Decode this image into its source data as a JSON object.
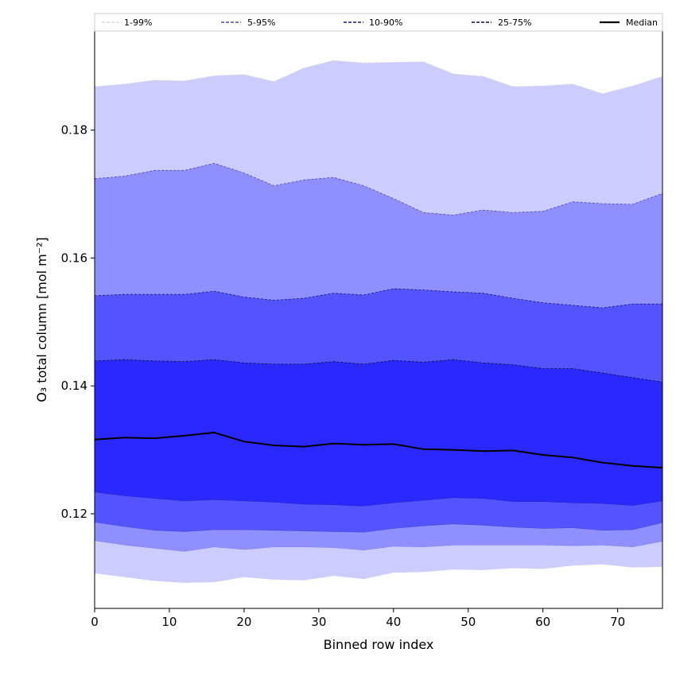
{
  "chart_data": {
    "type": "area",
    "xlabel": "Binned row index",
    "ylabel": "O₃ total column [mol m⁻²]",
    "xlim": [
      0,
      76
    ],
    "ylim": [
      0.1052,
      0.1955
    ],
    "x_ticks": [
      0,
      10,
      20,
      30,
      40,
      50,
      60,
      70
    ],
    "y_ticks": [
      0.12,
      0.14,
      0.16,
      0.18
    ],
    "x_tick_labels": [
      "0",
      "10",
      "20",
      "30",
      "40",
      "50",
      "60",
      "70"
    ],
    "y_tick_labels": [
      "0.12",
      "0.14",
      "0.16",
      "0.18"
    ],
    "grid": false,
    "legend_position": "top",
    "x": [
      0,
      4,
      8,
      12,
      16,
      20,
      24,
      28,
      32,
      36,
      40,
      44,
      48,
      52,
      56,
      60,
      64,
      68,
      72,
      76
    ],
    "series": [
      {
        "name": "1-99%",
        "kind": "band",
        "fill": "#ccccff",
        "line": "#d8d8d8",
        "lower": [
          0.1107,
          0.1101,
          0.1095,
          0.1092,
          0.1093,
          0.1101,
          0.1097,
          0.1096,
          0.1103,
          0.1098,
          0.1108,
          0.1109,
          0.1113,
          0.1112,
          0.1115,
          0.1114,
          0.1119,
          0.1121,
          0.1116,
          0.1117
        ],
        "upper": [
          0.1868,
          0.1872,
          0.1878,
          0.1877,
          0.1885,
          0.1887,
          0.1876,
          0.1897,
          0.1909,
          0.1905,
          0.1906,
          0.1907,
          0.1888,
          0.1884,
          0.1868,
          0.1869,
          0.1872,
          0.1857,
          0.1869,
          0.1884
        ]
      },
      {
        "name": "5-95%",
        "kind": "band",
        "fill": "#8f8fff",
        "line": "#4b4b9c",
        "lower": [
          0.1158,
          0.1151,
          0.1146,
          0.1141,
          0.1148,
          0.1144,
          0.1148,
          0.1148,
          0.1147,
          0.1143,
          0.1149,
          0.1148,
          0.1151,
          0.1151,
          0.1151,
          0.1151,
          0.115,
          0.1151,
          0.1148,
          0.1157
        ],
        "upper": [
          0.1724,
          0.1728,
          0.1737,
          0.1737,
          0.1748,
          0.1733,
          0.1713,
          0.1722,
          0.1726,
          0.1713,
          0.1693,
          0.1671,
          0.1667,
          0.1675,
          0.1671,
          0.1673,
          0.1688,
          0.1685,
          0.1684,
          0.1701
        ]
      },
      {
        "name": "10-90%",
        "kind": "band",
        "fill": "#5454ff",
        "line": "#1a1a6e",
        "lower": [
          0.1187,
          0.118,
          0.1174,
          0.1172,
          0.1175,
          0.1175,
          0.1174,
          0.1173,
          0.1172,
          0.1171,
          0.1177,
          0.1181,
          0.1184,
          0.1182,
          0.1179,
          0.1177,
          0.1178,
          0.1174,
          0.1175,
          0.1186
        ],
        "upper": [
          0.1541,
          0.1543,
          0.1543,
          0.1543,
          0.1548,
          0.1539,
          0.1534,
          0.1537,
          0.1545,
          0.1542,
          0.1552,
          0.155,
          0.1547,
          0.1545,
          0.1537,
          0.153,
          0.1526,
          0.1522,
          0.1528,
          0.1528
        ]
      },
      {
        "name": "25-75%",
        "kind": "band",
        "fill": "#2929ff",
        "line": "#0b0b4a",
        "lower": [
          0.1234,
          0.1228,
          0.1224,
          0.122,
          0.1222,
          0.122,
          0.1218,
          0.1215,
          0.1214,
          0.1212,
          0.1217,
          0.1221,
          0.1225,
          0.1224,
          0.1219,
          0.1219,
          0.1217,
          0.1216,
          0.1213,
          0.122
        ],
        "upper": [
          0.1439,
          0.1441,
          0.1439,
          0.1438,
          0.1441,
          0.1436,
          0.1434,
          0.1434,
          0.1438,
          0.1434,
          0.144,
          0.1437,
          0.1441,
          0.1436,
          0.1433,
          0.1427,
          0.1427,
          0.142,
          0.1413,
          0.1406
        ]
      },
      {
        "name": "Median",
        "kind": "line",
        "color": "#000000",
        "values": [
          0.1316,
          0.1319,
          0.1318,
          0.1322,
          0.1327,
          0.1313,
          0.1307,
          0.1305,
          0.131,
          0.1308,
          0.1309,
          0.1301,
          0.13,
          0.1298,
          0.1299,
          0.1292,
          0.1288,
          0.128,
          0.1275,
          0.1272
        ]
      }
    ]
  }
}
